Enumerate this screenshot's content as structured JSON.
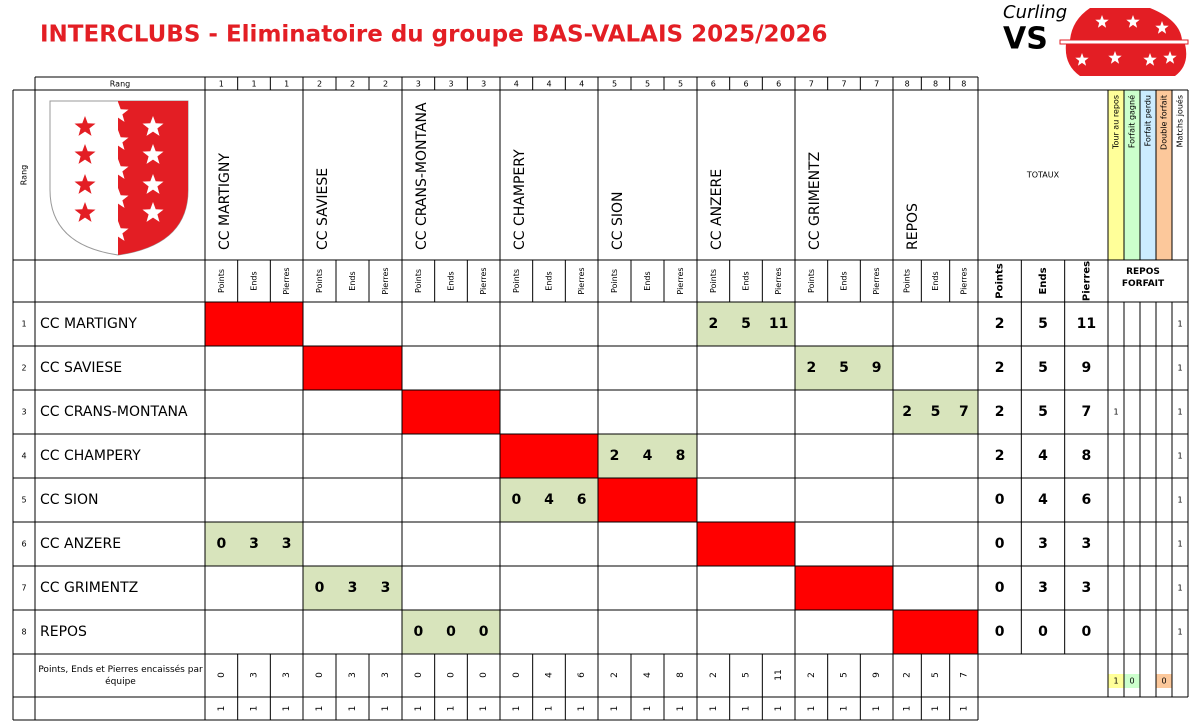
{
  "title": "INTERCLUBS - Eliminatoire du groupe BAS-VALAIS 2025/2026",
  "logo": {
    "line1": "Curling",
    "line2": "VS"
  },
  "header": {
    "rank_top": "Rang",
    "rank_side": "Rang",
    "totals": "TOTAUX",
    "sub_labels": [
      "Points",
      "Ends",
      "Pierres"
    ],
    "extra_labels": [
      "Tour au repos",
      "Forfait gagné",
      "Forfait perdu",
      "Double forfait",
      "Matchs joués"
    ],
    "extra_colors": [
      "#ffff99",
      "#ccffcc",
      "#ccecff",
      "#fcc89b",
      "#ffffff"
    ],
    "repos_forfait": "REPOS FORFAIT"
  },
  "column_ranks": [
    [
      1,
      1,
      1
    ],
    [
      2,
      2,
      2
    ],
    [
      3,
      3,
      3
    ],
    [
      4,
      4,
      4
    ],
    [
      5,
      5,
      5
    ],
    [
      6,
      6,
      6
    ],
    [
      7,
      7,
      7
    ],
    [
      8,
      8,
      8
    ]
  ],
  "teams": [
    "CC MARTIGNY",
    "CC SAVIESE",
    "CC CRANS-MONTANA",
    "CC CHAMPERY",
    "CC SION",
    "CC ANZERE",
    "CC GRIMENTZ",
    "REPOS"
  ],
  "rows": [
    {
      "rank": 1,
      "results": [
        null,
        null,
        null,
        null,
        null,
        [
          2,
          5,
          11
        ],
        null,
        null
      ],
      "totals": [
        2,
        5,
        11
      ],
      "extras": [
        null,
        null,
        null,
        null,
        1
      ]
    },
    {
      "rank": 2,
      "results": [
        null,
        null,
        null,
        null,
        null,
        null,
        [
          2,
          5,
          9
        ],
        null
      ],
      "totals": [
        2,
        5,
        9
      ],
      "extras": [
        null,
        null,
        null,
        null,
        1
      ]
    },
    {
      "rank": 3,
      "results": [
        null,
        null,
        null,
        null,
        null,
        null,
        null,
        [
          2,
          5,
          7
        ]
      ],
      "totals": [
        2,
        5,
        7
      ],
      "extras": [
        1,
        null,
        null,
        null,
        1
      ]
    },
    {
      "rank": 4,
      "results": [
        null,
        null,
        null,
        null,
        [
          2,
          4,
          8
        ],
        null,
        null,
        null
      ],
      "totals": [
        2,
        4,
        8
      ],
      "extras": [
        null,
        null,
        null,
        null,
        1
      ]
    },
    {
      "rank": 5,
      "results": [
        null,
        null,
        null,
        [
          0,
          4,
          6
        ],
        null,
        null,
        null,
        null
      ],
      "totals": [
        0,
        4,
        6
      ],
      "extras": [
        null,
        null,
        null,
        null,
        1
      ]
    },
    {
      "rank": 6,
      "results": [
        [
          0,
          3,
          3
        ],
        null,
        null,
        null,
        null,
        null,
        null,
        null
      ],
      "totals": [
        0,
        3,
        3
      ],
      "extras": [
        null,
        null,
        null,
        null,
        1
      ]
    },
    {
      "rank": 7,
      "results": [
        null,
        [
          0,
          3,
          3
        ],
        null,
        null,
        null,
        null,
        null,
        null
      ],
      "totals": [
        0,
        3,
        3
      ],
      "extras": [
        null,
        null,
        null,
        null,
        1
      ]
    },
    {
      "rank": 8,
      "results": [
        null,
        null,
        [
          0,
          0,
          0
        ],
        null,
        null,
        null,
        null,
        null
      ],
      "totals": [
        0,
        0,
        0
      ],
      "extras": [
        null,
        null,
        null,
        null,
        1
      ]
    }
  ],
  "footer": {
    "label": "Points, Ends et Pierres encaissés par équipe",
    "values": [
      [
        0,
        3,
        3
      ],
      [
        0,
        3,
        3
      ],
      [
        0,
        0,
        0
      ],
      [
        0,
        4,
        6
      ],
      [
        2,
        4,
        8
      ],
      [
        2,
        5,
        11
      ],
      [
        2,
        5,
        9
      ],
      [
        2,
        5,
        7
      ]
    ],
    "extras": [
      1,
      0,
      null,
      0,
      null
    ],
    "played": [
      [
        1,
        1,
        1
      ],
      [
        1,
        1,
        1
      ],
      [
        1,
        1,
        1
      ],
      [
        1,
        1,
        1
      ],
      [
        1,
        1,
        1
      ],
      [
        1,
        1,
        1
      ],
      [
        1,
        1,
        1
      ],
      [
        1,
        1,
        1
      ]
    ]
  }
}
